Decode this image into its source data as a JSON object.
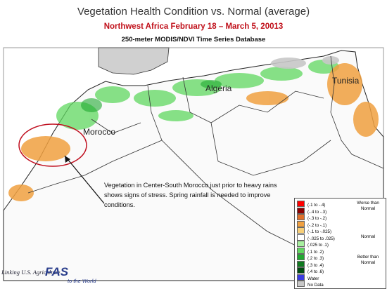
{
  "header": {
    "title": "Vegetation Health Condition vs. Normal (average)",
    "subtitle": "Northwest Africa February 18 – March 5, 20013",
    "source": "250-meter MODIS/NDVI Time Series Database"
  },
  "map": {
    "labels": [
      "Algeria",
      "Tunisia",
      "Morocco"
    ],
    "annotation": "Vegetation in Center-South Morocco just prior to heavy rains shows signs of stress.  Spring rainfall is needed to improve conditions."
  },
  "legend": {
    "items": [
      {
        "label": "(-1 to -.4)",
        "color": "#ff0000"
      },
      {
        "label": "(-.4 to -.3)",
        "color": "#8b0000"
      },
      {
        "label": "(-.3 to -.2)",
        "color": "#e0702a"
      },
      {
        "label": "(-.2 to -.1)",
        "color": "#f0a040"
      },
      {
        "label": "(-.1 to -.025)",
        "color": "#f8cf78"
      },
      {
        "label": "(-.025 to .025)",
        "color": "#ffffff"
      },
      {
        "label": "(.025 to .1)",
        "color": "#a8f0a0"
      },
      {
        "label": "(.1 to .2)",
        "color": "#60d860"
      },
      {
        "label": "(.2 to .3)",
        "color": "#20a830"
      },
      {
        "label": "(.3 to .4)",
        "color": "#107a20"
      },
      {
        "label": "(.4 to .6)",
        "color": "#004a10"
      },
      {
        "label": "Water",
        "color": "#3a3ae0"
      },
      {
        "label": "No Data",
        "color": "#c8c8c8"
      }
    ],
    "groups": [
      "Worse than Normal",
      "Normal",
      "Better than Normal"
    ]
  },
  "logo": {
    "line1": "Linking U.S. Agriculture",
    "mark": "FAS",
    "line2": "to the World"
  }
}
